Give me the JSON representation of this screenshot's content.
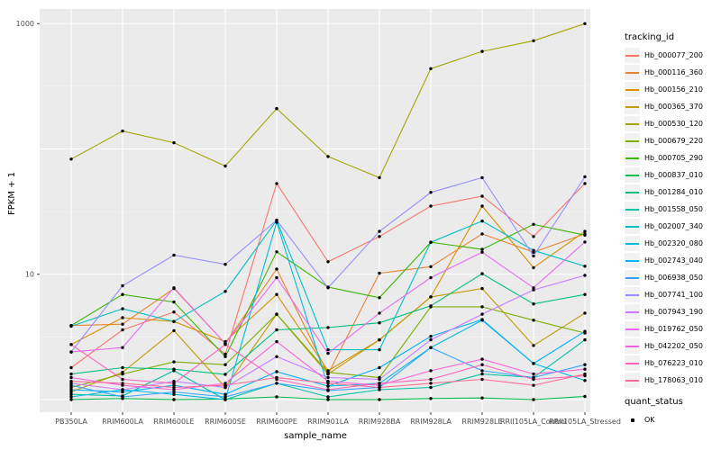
{
  "legend": {
    "tracking_title": "tracking_id",
    "quant_title": "quant_status",
    "quant_items": [
      {
        "label": "OK"
      }
    ]
  },
  "chart_data": {
    "type": "line",
    "title": "",
    "xlabel": "sample_name",
    "ylabel": "FPKM + 1",
    "y_scale": "log10",
    "ylim": [
      1,
      1300
    ],
    "grid": "on",
    "legend_position": "right",
    "panel_bg": "#EBEBEB",
    "grid_color": "#FFFFFF",
    "point_color": "#000000",
    "tick_text_color": "#4D4D4D",
    "y_ticks": [
      {
        "label": "1000",
        "value": 1000
      },
      {
        "label": "10",
        "value": 10
      }
    ],
    "x_categories": [
      "PB350LA",
      "RRIM600LA",
      "RRIM600LE",
      "RRIM600SE",
      "RRIM600PE",
      "RRIM901LA",
      "RRIM928BA",
      "RRIM928LA",
      "RRIM928LE",
      "RRII105LA_Control",
      "RRII105LA_Stressed"
    ],
    "series": [
      {
        "name": "Hb_000077_200",
        "color": "#F8766D",
        "values": [
          1.8,
          3.6,
          5.0,
          2.3,
          53,
          12.6,
          20,
          35,
          42,
          20,
          53
        ]
      },
      {
        "name": "Hb_000116_360",
        "color": "#EA8331",
        "values": [
          3.9,
          4.0,
          7.7,
          2.8,
          11,
          1.6,
          10.2,
          11.5,
          21,
          15,
          21
        ]
      },
      {
        "name": "Hb_000156_210",
        "color": "#D89000",
        "values": [
          2.75,
          4.5,
          4.2,
          2.9,
          6.9,
          1.7,
          3.0,
          6.6,
          35,
          11.3,
          22
        ]
      },
      {
        "name": "Hb_000365_370",
        "color": "#C09B00",
        "values": [
          1.15,
          1.65,
          3.55,
          1.25,
          4.8,
          1.6,
          3.0,
          6.6,
          7.7,
          2.7,
          4.9
        ]
      },
      {
        "name": "Hb_000530_120",
        "color": "#A3A500",
        "values": [
          83,
          139,
          112,
          73,
          210,
          87,
          59,
          437,
          600,
          730,
          1000
        ]
      },
      {
        "name": "Hb_000679_220",
        "color": "#7CAE00",
        "values": [
          1.25,
          1.6,
          2.0,
          1.9,
          4.8,
          1.65,
          1.5,
          5.5,
          5.5,
          4.3,
          3.4
        ]
      },
      {
        "name": "Hb_000705_290",
        "color": "#39B600",
        "values": [
          3.9,
          6.9,
          6.0,
          2.2,
          15.1,
          7.9,
          6.5,
          18,
          15.8,
          25,
          20.5
        ]
      },
      {
        "name": "Hb_000837_010",
        "color": "#00BB4E",
        "values": [
          1.0,
          1.02,
          1.0,
          1.01,
          1.05,
          1.0,
          1.0,
          1.02,
          1.03,
          1.0,
          1.06
        ]
      },
      {
        "name": "Hb_001284_010",
        "color": "#00BF7D",
        "values": [
          1.6,
          1.8,
          1.75,
          1.59,
          3.6,
          3.76,
          4.1,
          5.6,
          10.1,
          5.8,
          6.9
        ]
      },
      {
        "name": "Hb_001558_050",
        "color": "#00C1A3",
        "values": [
          1.1,
          1.07,
          1.7,
          1.0,
          1.35,
          1.05,
          1.2,
          1.25,
          1.6,
          1.5,
          3.0
        ]
      },
      {
        "name": "Hb_002007_340",
        "color": "#00BFC4",
        "values": [
          3.85,
          5.3,
          4.2,
          7.3,
          27,
          2.5,
          2.5,
          18,
          26.6,
          15.5,
          11.6
        ]
      },
      {
        "name": "Hb_002320_080",
        "color": "#00BAE0",
        "values": [
          1.05,
          1.2,
          1.1,
          1.0,
          26,
          1.28,
          1.35,
          2.6,
          4.3,
          1.94,
          1.42
        ]
      },
      {
        "name": "Hb_002743_040",
        "color": "#00B0F6",
        "values": [
          1.2,
          1.15,
          1.3,
          1.1,
          1.67,
          1.28,
          1.8,
          3.2,
          4.35,
          1.94,
          3.5
        ]
      },
      {
        "name": "Hb_006938_050",
        "color": "#35A2FF",
        "values": [
          1.3,
          1.05,
          1.15,
          1.05,
          1.35,
          1.18,
          1.25,
          2.6,
          1.7,
          1.5,
          1.9
        ]
      },
      {
        "name": "Hb_007741_100",
        "color": "#9590FF",
        "values": [
          2.4,
          8.1,
          14.2,
          12,
          27,
          7.8,
          22,
          45,
          59,
          14,
          60
        ]
      },
      {
        "name": "Hb_007943_190",
        "color": "#C77CFF",
        "values": [
          1.35,
          1.2,
          1.4,
          1.25,
          2.2,
          1.5,
          1.45,
          3.0,
          4.8,
          7.5,
          9.8
        ]
      },
      {
        "name": "Hb_019762_050",
        "color": "#E76BF3",
        "values": [
          2.4,
          2.6,
          7.8,
          2.8,
          9.4,
          2.34,
          4.9,
          9.4,
          15,
          7.8,
          18.1
        ]
      },
      {
        "name": "Hb_042202_050",
        "color": "#FA62DB",
        "values": [
          1.5,
          1.3,
          1.2,
          1.35,
          2.9,
          1.4,
          1.3,
          1.7,
          2.1,
          1.6,
          1.75
        ]
      },
      {
        "name": "Hb_076223_010",
        "color": "#FF62BC",
        "values": [
          2.75,
          1.45,
          1.35,
          2.75,
          1.45,
          1.2,
          1.35,
          1.45,
          1.9,
          1.45,
          1.55
        ]
      },
      {
        "name": "Hb_178063_010",
        "color": "#FF6A98",
        "values": [
          1.4,
          1.35,
          1.25,
          1.3,
          1.5,
          1.35,
          1.25,
          1.35,
          1.45,
          1.3,
          1.6
        ]
      }
    ]
  }
}
